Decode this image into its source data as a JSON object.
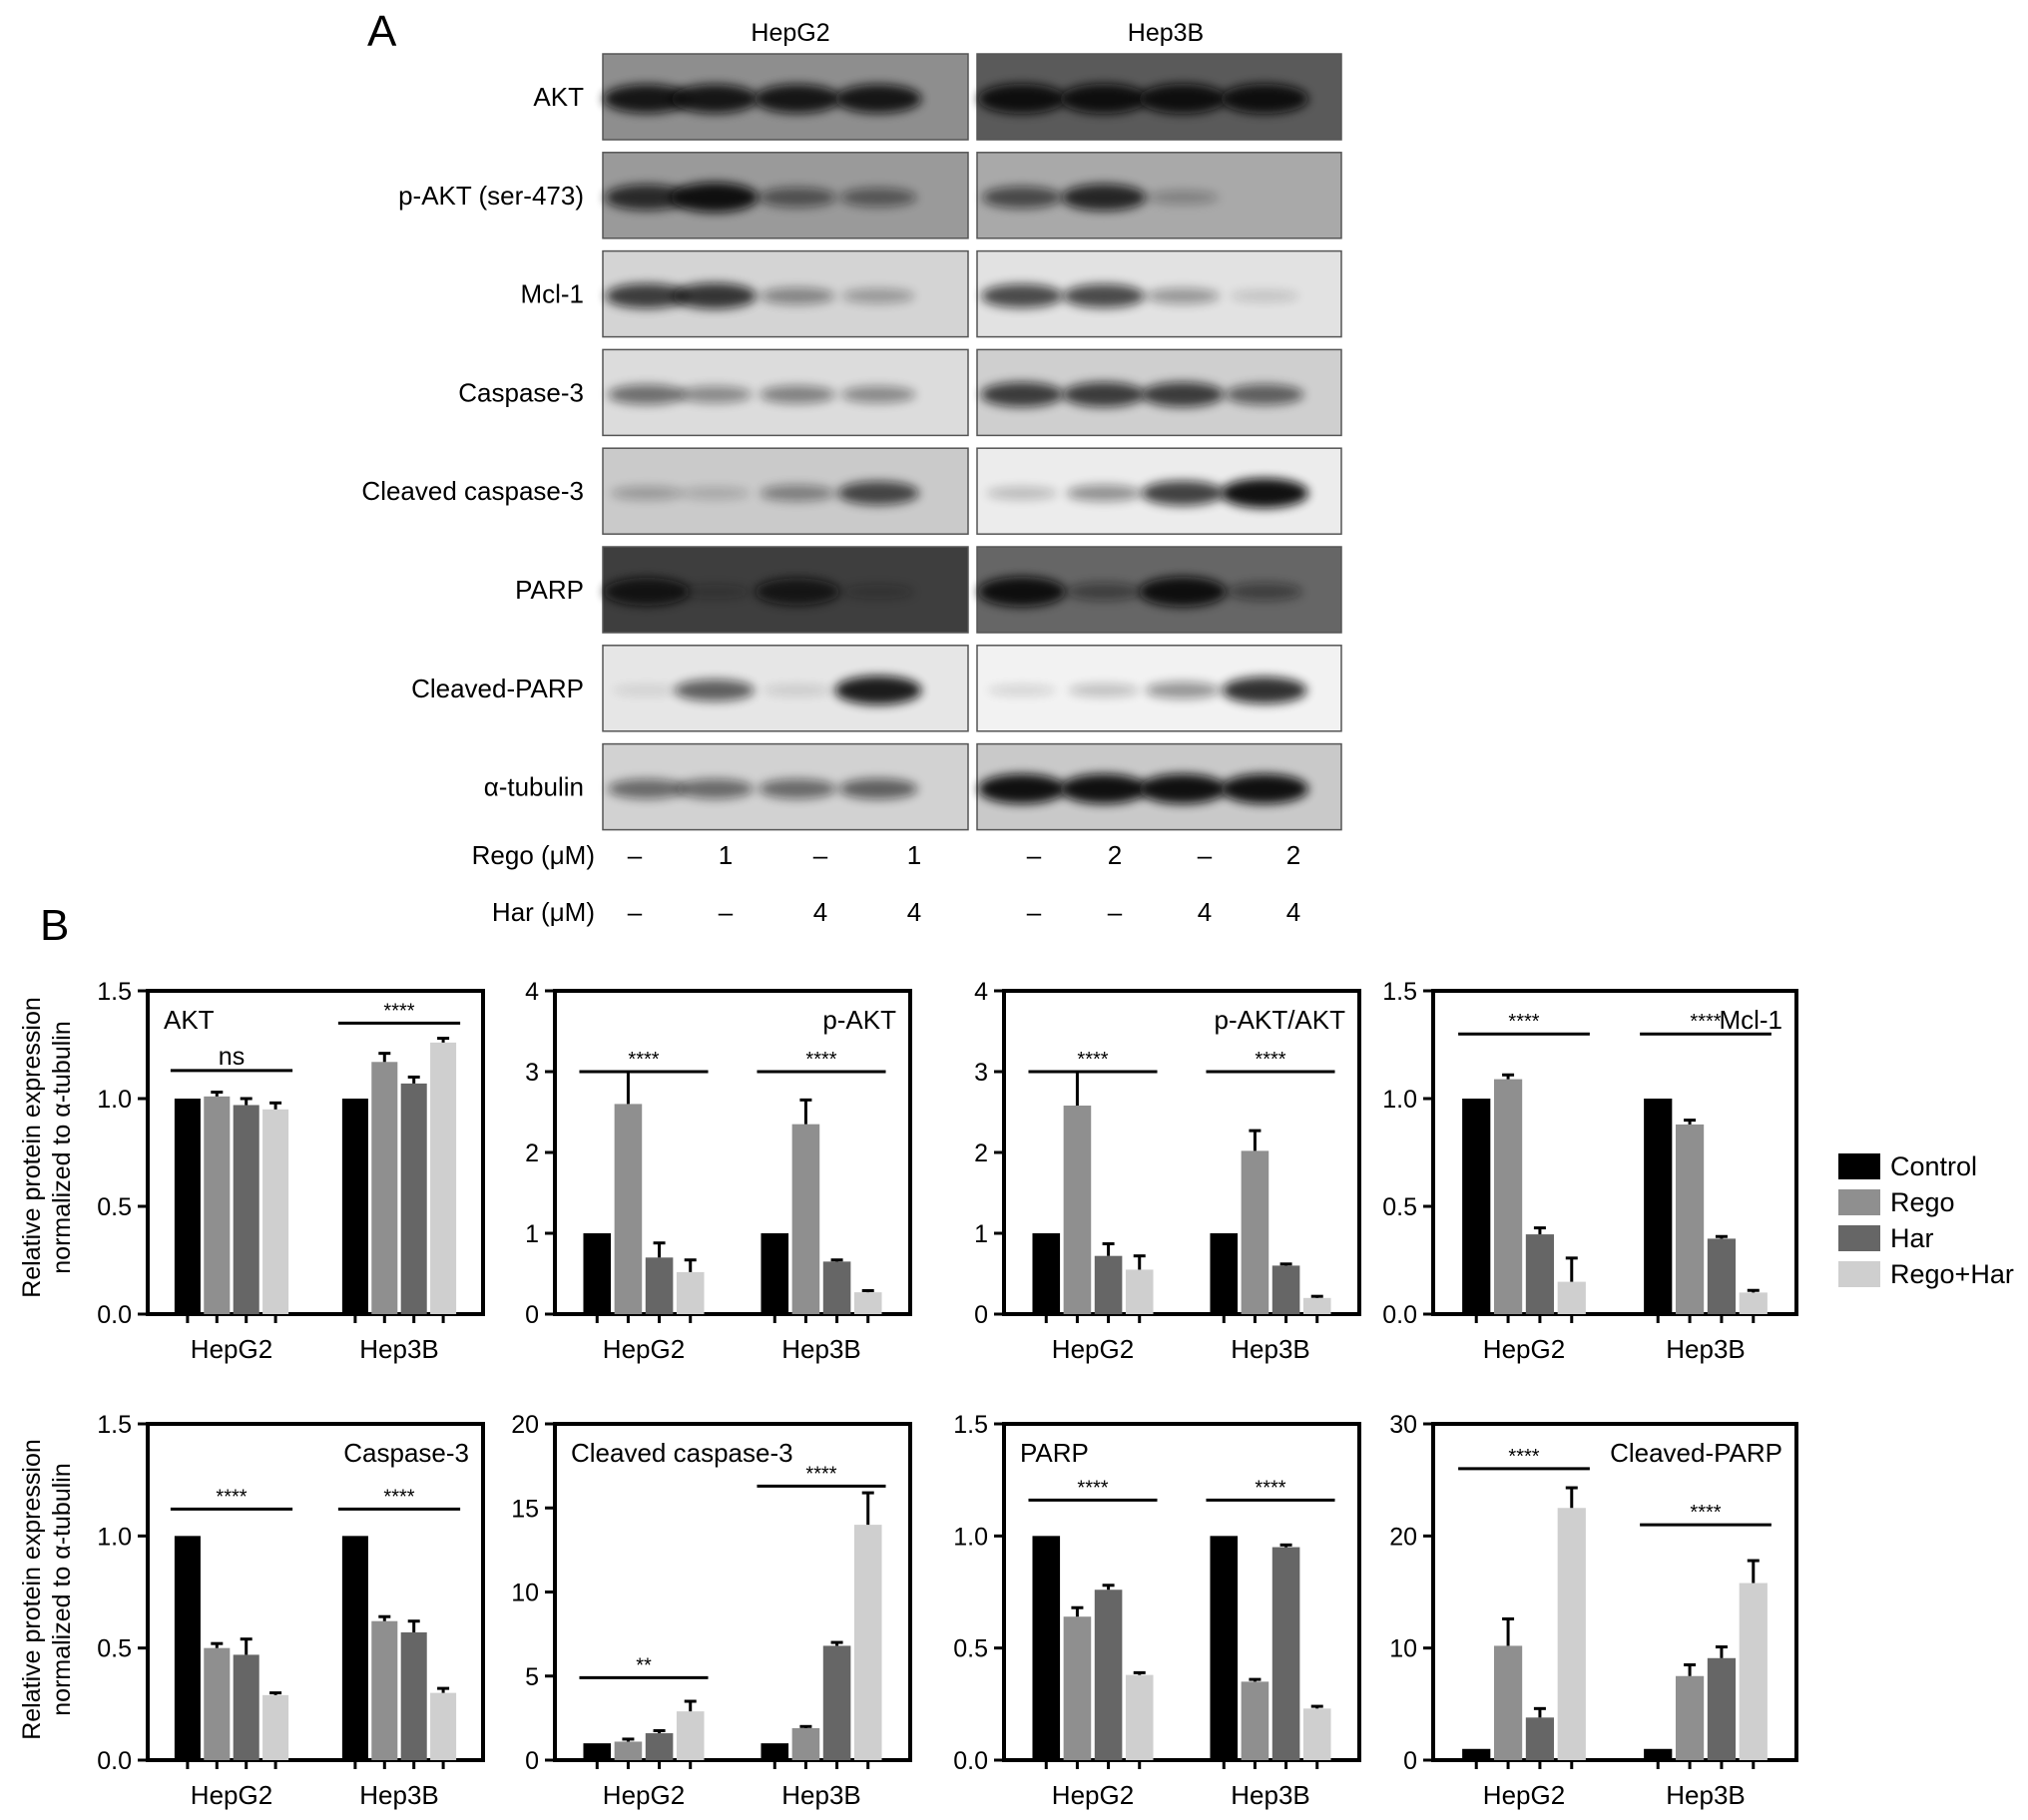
{
  "panel_a": {
    "label": "A",
    "cell_lines": [
      "HepG2",
      "Hep3B"
    ],
    "blot_rows": [
      {
        "label": "AKT",
        "HepG2": {
          "bg": "#8e8e8e",
          "bands": [
            0.95,
            0.95,
            0.95,
            0.95
          ]
        },
        "Hep3B": {
          "bg": "#5a5a5a",
          "bands": [
            1.0,
            1.0,
            1.0,
            1.0
          ]
        }
      },
      {
        "label": "p-AKT (ser-473)",
        "HepG2": {
          "bg": "#9a9a9a",
          "bands": [
            0.8,
            1.0,
            0.5,
            0.45
          ]
        },
        "Hep3B": {
          "bg": "#a9a9a9",
          "bands": [
            0.6,
            0.85,
            0.2,
            0.0
          ]
        }
      },
      {
        "label": "Mcl-1",
        "HepG2": {
          "bg": "#d4d4d4",
          "bands": [
            0.75,
            0.8,
            0.35,
            0.25
          ]
        },
        "Hep3B": {
          "bg": "#e2e2e2",
          "bands": [
            0.7,
            0.7,
            0.3,
            0.08
          ]
        }
      },
      {
        "label": "Caspase-3",
        "HepG2": {
          "bg": "#dcdcdc",
          "bands": [
            0.5,
            0.35,
            0.4,
            0.35
          ]
        },
        "Hep3B": {
          "bg": "#cfcfcf",
          "bands": [
            0.75,
            0.75,
            0.75,
            0.55
          ]
        }
      },
      {
        "label": "Cleaved caspase-3",
        "HepG2": {
          "bg": "#cacaca",
          "bands": [
            0.2,
            0.12,
            0.35,
            0.7
          ]
        },
        "Hep3B": {
          "bg": "#ececec",
          "bands": [
            0.15,
            0.35,
            0.75,
            1.0
          ]
        }
      },
      {
        "label": "PARP",
        "HepG2": {
          "bg": "#3e3e3e",
          "bands": [
            0.9,
            0.2,
            0.85,
            0.2
          ]
        },
        "Hep3B": {
          "bg": "#666666",
          "bands": [
            1.0,
            0.4,
            1.0,
            0.4
          ]
        }
      },
      {
        "label": "Cleaved-PARP",
        "HepG2": {
          "bg": "#e6e6e6",
          "bands": [
            0.02,
            0.6,
            0.05,
            0.95
          ]
        },
        "Hep3B": {
          "bg": "#f2f2f2",
          "bands": [
            0.05,
            0.15,
            0.35,
            0.85
          ]
        }
      },
      {
        "label": "α-tubulin",
        "HepG2": {
          "bg": "#d2d2d2",
          "bands": [
            0.5,
            0.5,
            0.5,
            0.55
          ]
        },
        "Hep3B": {
          "bg": "#c9c9c9",
          "bands": [
            1.0,
            1.0,
            1.0,
            1.0
          ]
        }
      }
    ],
    "treatments": [
      {
        "label": "Rego (μM)",
        "values": [
          "–",
          "1",
          "–",
          "1",
          "–",
          "2",
          "–",
          "2"
        ]
      },
      {
        "label": "Har (μM)",
        "values": [
          "–",
          "–",
          "4",
          "4",
          "–",
          "–",
          "4",
          "4"
        ]
      }
    ]
  },
  "panel_b": {
    "label": "B",
    "ylabel_line1": "Relative protein expression",
    "ylabel_line2": "normalized to α-tubulin",
    "legend": [
      {
        "name": "Control",
        "color": "#000000"
      },
      {
        "name": "Rego",
        "color": "#8f8f8f"
      },
      {
        "name": "Har",
        "color": "#666666"
      },
      {
        "name": "Rego+Har",
        "color": "#cfcfcf"
      }
    ]
  },
  "chart_data": [
    {
      "type": "bar",
      "title": "AKT",
      "title_align": "left",
      "ylim": [
        0,
        1.5
      ],
      "ticks": [
        "0.0",
        "0.5",
        "1.0",
        "1.5"
      ],
      "categories": [
        "HepG2",
        "Hep3B"
      ],
      "series": [
        {
          "name": "Control",
          "values": [
            1.0,
            1.0
          ],
          "errors": [
            0,
            0
          ]
        },
        {
          "name": "Rego",
          "values": [
            1.01,
            1.17
          ],
          "errors": [
            0.02,
            0.04
          ]
        },
        {
          "name": "Har",
          "values": [
            0.97,
            1.07
          ],
          "errors": [
            0.03,
            0.03
          ]
        },
        {
          "name": "Rego+Har",
          "values": [
            0.95,
            1.26
          ],
          "errors": [
            0.03,
            0.02
          ]
        }
      ],
      "significance": [
        {
          "group": 0,
          "text": "ns",
          "y": 1.13
        },
        {
          "group": 1,
          "text": "****",
          "y": 1.35
        }
      ]
    },
    {
      "type": "bar",
      "title": "p-AKT",
      "title_align": "right",
      "ylim": [
        0,
        4
      ],
      "ticks": [
        "0",
        "1",
        "2",
        "3",
        "4"
      ],
      "categories": [
        "HepG2",
        "Hep3B"
      ],
      "series": [
        {
          "name": "Control",
          "values": [
            1.0,
            1.0
          ],
          "errors": [
            0,
            0
          ]
        },
        {
          "name": "Rego",
          "values": [
            2.6,
            2.35
          ],
          "errors": [
            0.4,
            0.3
          ]
        },
        {
          "name": "Har",
          "values": [
            0.7,
            0.65
          ],
          "errors": [
            0.18,
            0.02
          ]
        },
        {
          "name": "Rego+Har",
          "values": [
            0.52,
            0.27
          ],
          "errors": [
            0.15,
            0.02
          ]
        }
      ],
      "significance": [
        {
          "group": 0,
          "text": "****",
          "y": 3.0
        },
        {
          "group": 1,
          "text": "****",
          "y": 3.0
        }
      ]
    },
    {
      "type": "bar",
      "title": "p-AKT/AKT",
      "title_align": "right",
      "ylim": [
        0,
        4
      ],
      "ticks": [
        "0",
        "1",
        "2",
        "3",
        "4"
      ],
      "categories": [
        "HepG2",
        "Hep3B"
      ],
      "series": [
        {
          "name": "Control",
          "values": [
            1.0,
            1.0
          ],
          "errors": [
            0,
            0
          ]
        },
        {
          "name": "Rego",
          "values": [
            2.58,
            2.02
          ],
          "errors": [
            0.42,
            0.25
          ]
        },
        {
          "name": "Har",
          "values": [
            0.72,
            0.6
          ],
          "errors": [
            0.15,
            0.02
          ]
        },
        {
          "name": "Rego+Har",
          "values": [
            0.55,
            0.2
          ],
          "errors": [
            0.17,
            0.02
          ]
        }
      ],
      "significance": [
        {
          "group": 0,
          "text": "****",
          "y": 3.0
        },
        {
          "group": 1,
          "text": "****",
          "y": 3.0
        }
      ]
    },
    {
      "type": "bar",
      "title": "Mcl-1",
      "title_align": "right",
      "ylim": [
        0,
        1.5
      ],
      "ticks": [
        "0.0",
        "0.5",
        "1.0",
        "1.5"
      ],
      "categories": [
        "HepG2",
        "Hep3B"
      ],
      "series": [
        {
          "name": "Control",
          "values": [
            1.0,
            1.0
          ],
          "errors": [
            0,
            0
          ]
        },
        {
          "name": "Rego",
          "values": [
            1.09,
            0.88
          ],
          "errors": [
            0.02,
            0.02
          ]
        },
        {
          "name": "Har",
          "values": [
            0.37,
            0.35
          ],
          "errors": [
            0.03,
            0.01
          ]
        },
        {
          "name": "Rego+Har",
          "values": [
            0.15,
            0.1
          ],
          "errors": [
            0.11,
            0.01
          ]
        }
      ],
      "significance": [
        {
          "group": 0,
          "text": "****",
          "y": 1.3
        },
        {
          "group": 1,
          "text": "****",
          "y": 1.3
        }
      ]
    },
    {
      "type": "bar",
      "title": "Caspase-3",
      "title_align": "right",
      "ylim": [
        0,
        1.5
      ],
      "ticks": [
        "0.0",
        "0.5",
        "1.0",
        "1.5"
      ],
      "categories": [
        "HepG2",
        "Hep3B"
      ],
      "series": [
        {
          "name": "Control",
          "values": [
            1.0,
            1.0
          ],
          "errors": [
            0,
            0
          ]
        },
        {
          "name": "Rego",
          "values": [
            0.5,
            0.62
          ],
          "errors": [
            0.02,
            0.02
          ]
        },
        {
          "name": "Har",
          "values": [
            0.47,
            0.57
          ],
          "errors": [
            0.07,
            0.05
          ]
        },
        {
          "name": "Rego+Har",
          "values": [
            0.29,
            0.3
          ],
          "errors": [
            0.01,
            0.02
          ]
        }
      ],
      "significance": [
        {
          "group": 0,
          "text": "****",
          "y": 1.12
        },
        {
          "group": 1,
          "text": "****",
          "y": 1.12
        }
      ]
    },
    {
      "type": "bar",
      "title": "Cleaved caspase-3",
      "title_align": "left",
      "ylim": [
        0,
        20
      ],
      "ticks": [
        "0",
        "5",
        "10",
        "15",
        "20"
      ],
      "categories": [
        "HepG2",
        "Hep3B"
      ],
      "series": [
        {
          "name": "Control",
          "values": [
            1.0,
            1.0
          ],
          "errors": [
            0,
            0
          ]
        },
        {
          "name": "Rego",
          "values": [
            1.1,
            1.9
          ],
          "errors": [
            0.15,
            0.1
          ]
        },
        {
          "name": "Har",
          "values": [
            1.6,
            6.8
          ],
          "errors": [
            0.15,
            0.2
          ]
        },
        {
          "name": "Rego+Har",
          "values": [
            2.9,
            14.0
          ],
          "errors": [
            0.6,
            1.9
          ]
        }
      ],
      "significance": [
        {
          "group": 0,
          "text": "**",
          "y": 4.9
        },
        {
          "group": 1,
          "text": "****",
          "y": 16.3
        }
      ]
    },
    {
      "type": "bar",
      "title": "PARP",
      "title_align": "left",
      "ylim": [
        0,
        1.5
      ],
      "ticks": [
        "0.0",
        "0.5",
        "1.0",
        "1.5"
      ],
      "categories": [
        "HepG2",
        "Hep3B"
      ],
      "series": [
        {
          "name": "Control",
          "values": [
            1.0,
            1.0
          ],
          "errors": [
            0,
            0
          ]
        },
        {
          "name": "Rego",
          "values": [
            0.64,
            0.35
          ],
          "errors": [
            0.04,
            0.01
          ]
        },
        {
          "name": "Har",
          "values": [
            0.76,
            0.95
          ],
          "errors": [
            0.02,
            0.01
          ]
        },
        {
          "name": "Rego+Har",
          "values": [
            0.38,
            0.23
          ],
          "errors": [
            0.01,
            0.01
          ]
        }
      ],
      "significance": [
        {
          "group": 0,
          "text": "****",
          "y": 1.16
        },
        {
          "group": 1,
          "text": "****",
          "y": 1.16
        }
      ]
    },
    {
      "type": "bar",
      "title": "Cleaved-PARP",
      "title_align": "right",
      "ylim": [
        0,
        30
      ],
      "ticks": [
        "0",
        "10",
        "20",
        "30"
      ],
      "categories": [
        "HepG2",
        "Hep3B"
      ],
      "series": [
        {
          "name": "Control",
          "values": [
            1.0,
            1.0
          ],
          "errors": [
            0,
            0
          ]
        },
        {
          "name": "Rego",
          "values": [
            10.2,
            7.5
          ],
          "errors": [
            2.4,
            1.0
          ]
        },
        {
          "name": "Har",
          "values": [
            3.8,
            9.1
          ],
          "errors": [
            0.8,
            1.0
          ]
        },
        {
          "name": "Rego+Har",
          "values": [
            22.5,
            15.8
          ],
          "errors": [
            1.8,
            2.0
          ]
        }
      ],
      "significance": [
        {
          "group": 0,
          "text": "****",
          "y": 26.0
        },
        {
          "group": 1,
          "text": "****",
          "y": 21.0
        }
      ]
    }
  ]
}
